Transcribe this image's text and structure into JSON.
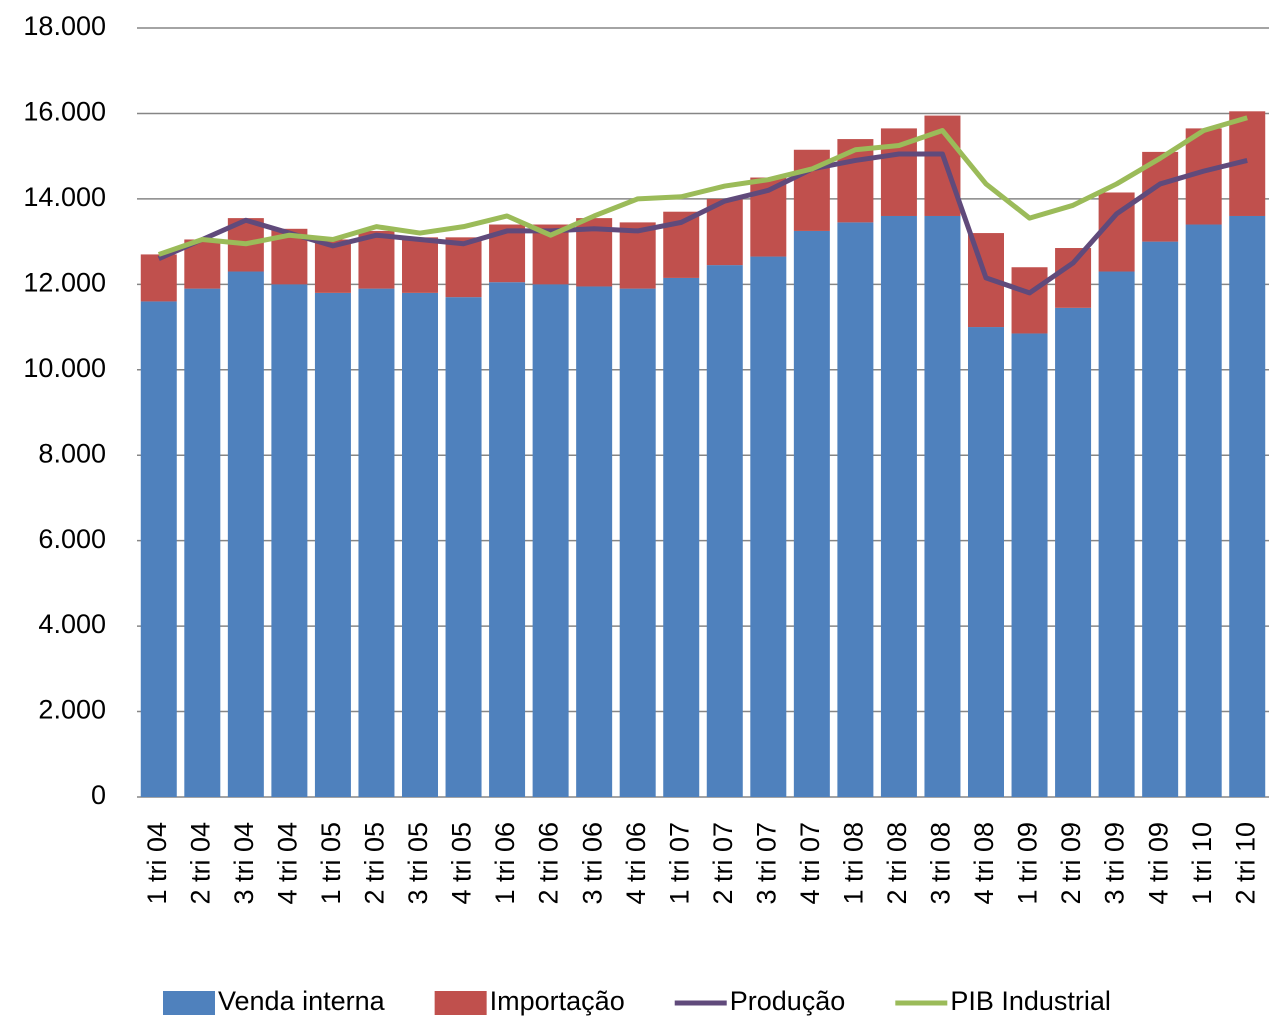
{
  "chart_data": {
    "type": "bar",
    "stacked": true,
    "categories": [
      "1 tri 04",
      "2 tri 04",
      "3 tri 04",
      "4 tri 04",
      "1 tri 05",
      "2 tri 05",
      "3 tri 05",
      "4 tri 05",
      "1 tri 06",
      "2 tri 06",
      "3 tri 06",
      "4 tri 06",
      "1 tri 07",
      "2 tri 07",
      "3 tri 07",
      "4 tri 07",
      "1 tri 08",
      "2 tri 08",
      "3 tri 08",
      "4 tri 08",
      "1 tri 09",
      "2 tri 09",
      "3 tri 09",
      "4 tri 09",
      "1 tri 10",
      "2 tri 10"
    ],
    "series": [
      {
        "name": "Venda interna",
        "type": "bar",
        "color": "#4f81bd",
        "values": [
          11600,
          11900,
          12300,
          12000,
          11800,
          11900,
          11800,
          11700,
          12050,
          12000,
          11950,
          11900,
          12150,
          12450,
          12650,
          13250,
          13450,
          13600,
          13600,
          11000,
          10850,
          11450,
          12300,
          13000,
          13400,
          13600
        ]
      },
      {
        "name": "Importação",
        "type": "bar",
        "color": "#c0504d",
        "values": [
          1100,
          1150,
          1250,
          1300,
          1250,
          1350,
          1300,
          1400,
          1350,
          1400,
          1600,
          1550,
          1550,
          1550,
          1850,
          1900,
          1950,
          2050,
          2350,
          2200,
          1550,
          1400,
          1850,
          2100,
          2250,
          2450
        ]
      },
      {
        "name": "Produção",
        "type": "line",
        "color": "#604a7b",
        "values": [
          12600,
          13050,
          13500,
          13200,
          12900,
          13150,
          13050,
          12950,
          13250,
          13250,
          13300,
          13250,
          13450,
          13950,
          14200,
          14700,
          14900,
          15050,
          15050,
          12150,
          11800,
          12500,
          13650,
          14350,
          14650,
          14900
        ]
      },
      {
        "name": "PIB Industrial",
        "type": "line",
        "color": "#9bbb59",
        "values": [
          12700,
          13050,
          12950,
          13150,
          13050,
          13350,
          13200,
          13350,
          13600,
          13150,
          13600,
          14000,
          14050,
          14300,
          14450,
          14700,
          15150,
          15250,
          15600,
          14350,
          13550,
          13850,
          14350,
          14950,
          15600,
          15900
        ]
      }
    ],
    "ylim": [
      0,
      18000
    ],
    "yticks": [
      0,
      {
        "value": 2000,
        "label": "2.000"
      },
      {
        "value": 4000,
        "label": "4.000"
      },
      {
        "value": 6000,
        "label": "6.000"
      },
      {
        "value": 8000,
        "label": "8.000"
      },
      {
        "value": 10000,
        "label": "10.000"
      },
      {
        "value": 12000,
        "label": "12.000"
      },
      {
        "value": 14000,
        "label": "14.000"
      },
      {
        "value": 16000,
        "label": "16.000"
      },
      {
        "value": 18000,
        "label": "18.000"
      }
    ],
    "grid": true,
    "legend": "bottom"
  }
}
